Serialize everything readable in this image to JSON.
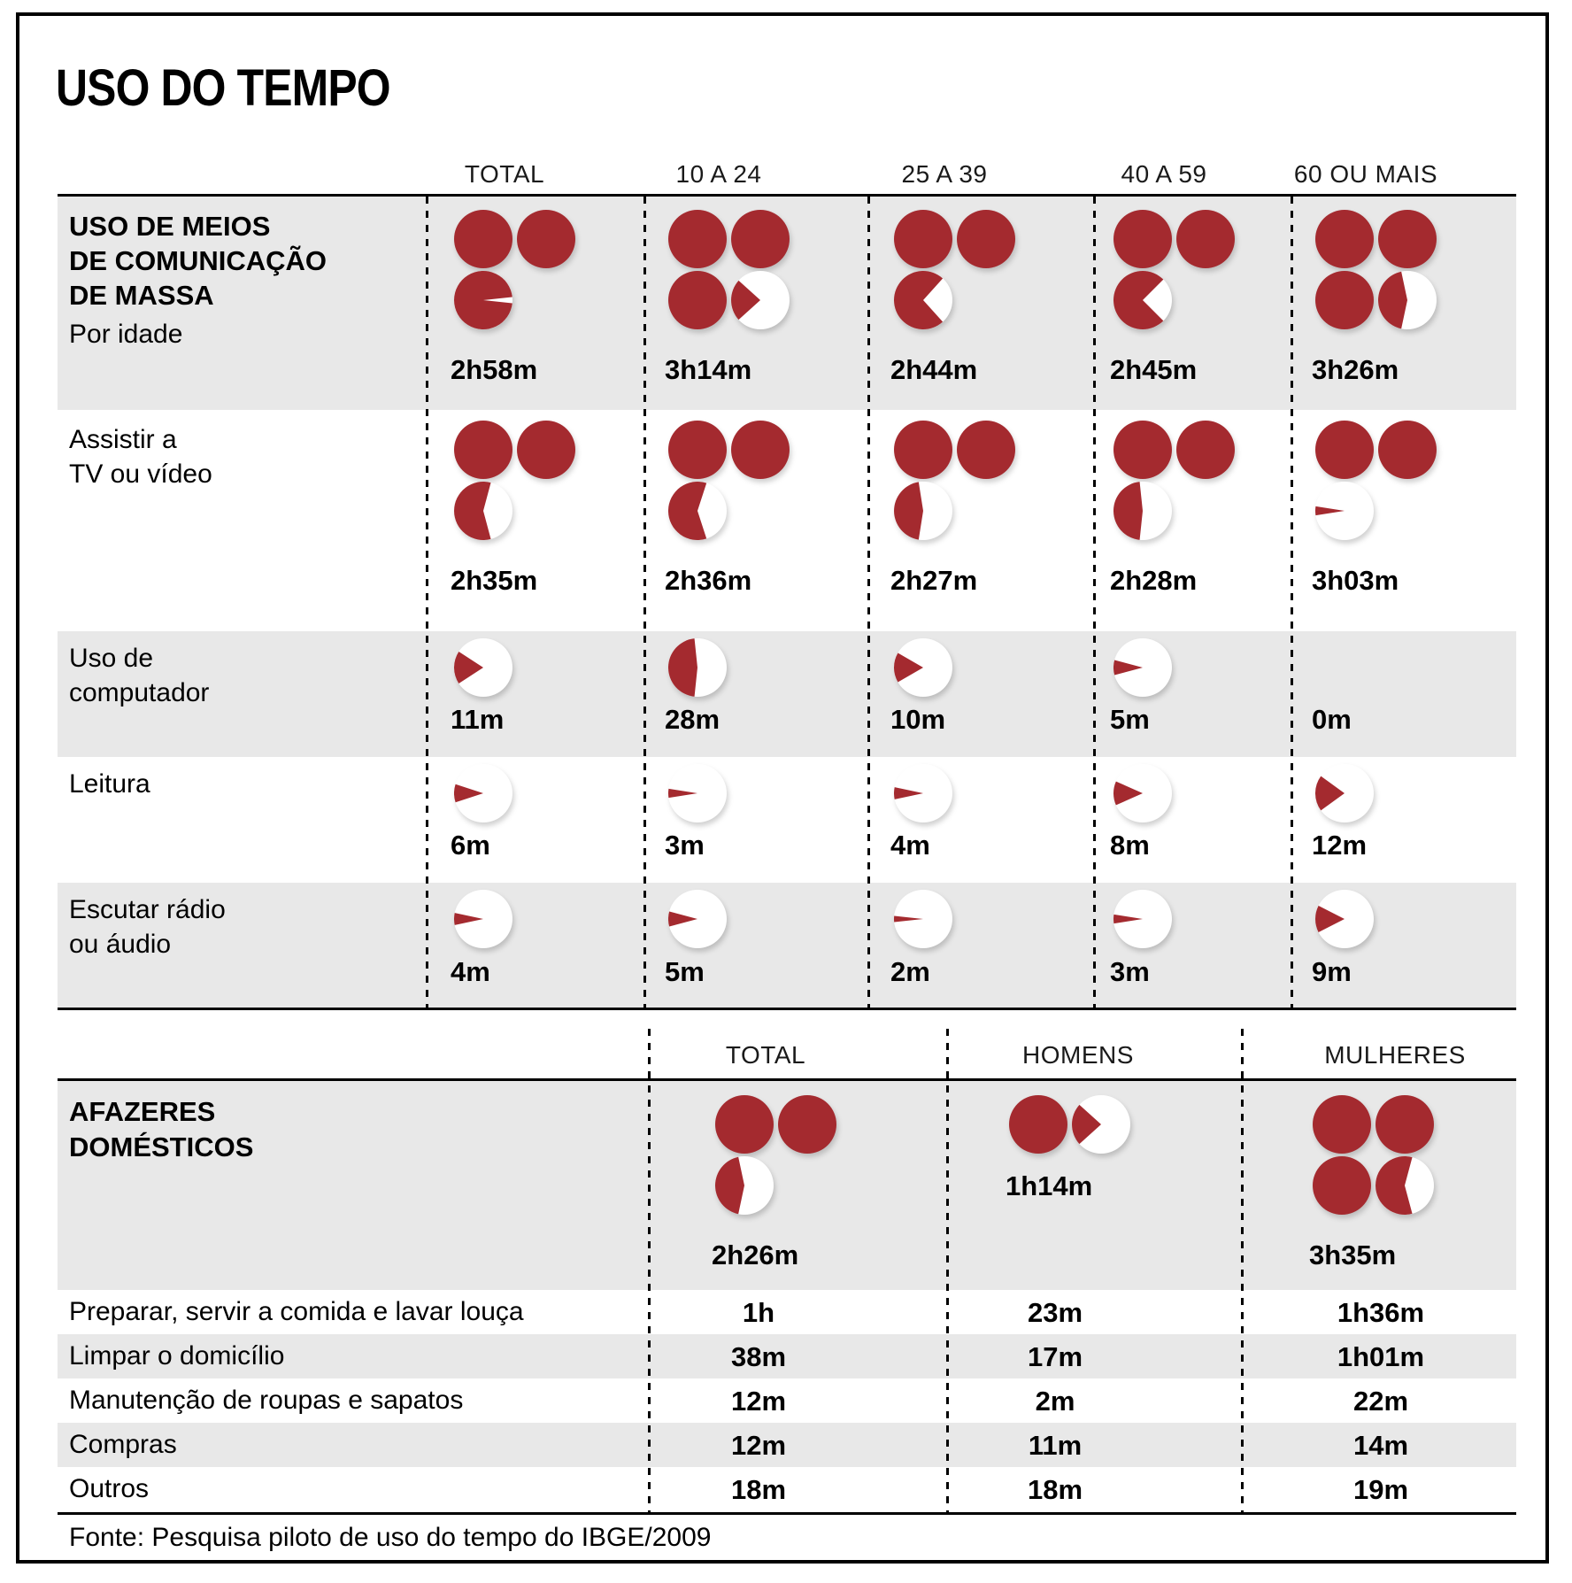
{
  "title": "USO DO TEMPO",
  "source": "Fonte: Pesquisa piloto de uso do tempo do IBGE/2009",
  "colors": {
    "red": "#A42A2F",
    "band": "#E8E8E8",
    "line": "#000000"
  },
  "chart_data": {
    "type": "table",
    "title": "USO DO TEMPO",
    "unit": "hours-and-minutes per day, pies: 1 circle = 1 hour, wedge = minutes/60",
    "media_table": {
      "headers": [
        "TOTAL",
        "10 A 24",
        "25 A 39",
        "40 A 59",
        "60 OU MAIS"
      ],
      "rows": [
        {
          "label_lines": [
            "USO DE MEIOS",
            "DE COMUNICAÇÃO",
            "DE MASSA"
          ],
          "sublabel": "Por idade",
          "bold": true,
          "cells": [
            {
              "value": "2h58m",
              "pies": [
                60,
                60,
                58
              ]
            },
            {
              "value": "3h14m",
              "pies": [
                60,
                60,
                60,
                14
              ]
            },
            {
              "value": "2h44m",
              "pies": [
                60,
                60,
                44
              ]
            },
            {
              "value": "2h45m",
              "pies": [
                60,
                60,
                45
              ]
            },
            {
              "value": "3h26m",
              "pies": [
                60,
                60,
                60,
                26
              ]
            }
          ]
        },
        {
          "label_lines": [
            "Assistir a",
            "TV ou vídeo"
          ],
          "sublabel": "",
          "bold": false,
          "cells": [
            {
              "value": "2h35m",
              "pies": [
                60,
                60,
                35
              ]
            },
            {
              "value": "2h36m",
              "pies": [
                60,
                60,
                36
              ]
            },
            {
              "value": "2h27m",
              "pies": [
                60,
                60,
                27
              ]
            },
            {
              "value": "2h28m",
              "pies": [
                60,
                60,
                28
              ]
            },
            {
              "value": "3h03m",
              "pies": [
                60,
                60,
                3
              ]
            }
          ]
        },
        {
          "label_lines": [
            "Uso de",
            "computador"
          ],
          "sublabel": "",
          "bold": false,
          "cells": [
            {
              "value": "11m",
              "pies": [
                11
              ]
            },
            {
              "value": "28m",
              "pies": [
                28
              ]
            },
            {
              "value": "10m",
              "pies": [
                10
              ]
            },
            {
              "value": "5m",
              "pies": [
                5
              ]
            },
            {
              "value": "0m",
              "pies": []
            }
          ]
        },
        {
          "label_lines": [
            "Leitura"
          ],
          "sublabel": "",
          "bold": false,
          "cells": [
            {
              "value": "6m",
              "pies": [
                6
              ]
            },
            {
              "value": "3m",
              "pies": [
                3
              ]
            },
            {
              "value": "4m",
              "pies": [
                4
              ]
            },
            {
              "value": "8m",
              "pies": [
                8
              ]
            },
            {
              "value": "12m",
              "pies": [
                12
              ]
            }
          ]
        },
        {
          "label_lines": [
            "Escutar rádio",
            "ou áudio"
          ],
          "sublabel": "",
          "bold": false,
          "cells": [
            {
              "value": "4m",
              "pies": [
                4
              ]
            },
            {
              "value": "5m",
              "pies": [
                5
              ]
            },
            {
              "value": "2m",
              "pies": [
                2
              ]
            },
            {
              "value": "3m",
              "pies": [
                3
              ]
            },
            {
              "value": "9m",
              "pies": [
                9
              ]
            }
          ]
        }
      ]
    },
    "chores_table": {
      "headers": [
        "TOTAL",
        "HOMENS",
        "MULHERES"
      ],
      "section": {
        "label_lines": [
          "AFAZERES",
          "DOMÉSTICOS"
        ],
        "cells": [
          {
            "value": "2h26m",
            "pies": [
              60,
              60,
              26
            ]
          },
          {
            "value": "1h14m",
            "pies": [
              60,
              14
            ]
          },
          {
            "value": "3h35m",
            "pies": [
              60,
              60,
              60,
              35
            ]
          }
        ]
      },
      "rows": [
        {
          "label": "Preparar, servir a comida e lavar louça",
          "values": [
            "1h",
            "23m",
            "1h36m"
          ]
        },
        {
          "label": "Limpar o domicílio",
          "values": [
            "38m",
            "17m",
            "1h01m"
          ]
        },
        {
          "label": "Manutenção de roupas e sapatos",
          "values": [
            "12m",
            "2m",
            "22m"
          ]
        },
        {
          "label": "Compras",
          "values": [
            "12m",
            "11m",
            "14m"
          ]
        },
        {
          "label": "Outros",
          "values": [
            "18m",
            "18m",
            "19m"
          ]
        }
      ]
    }
  }
}
